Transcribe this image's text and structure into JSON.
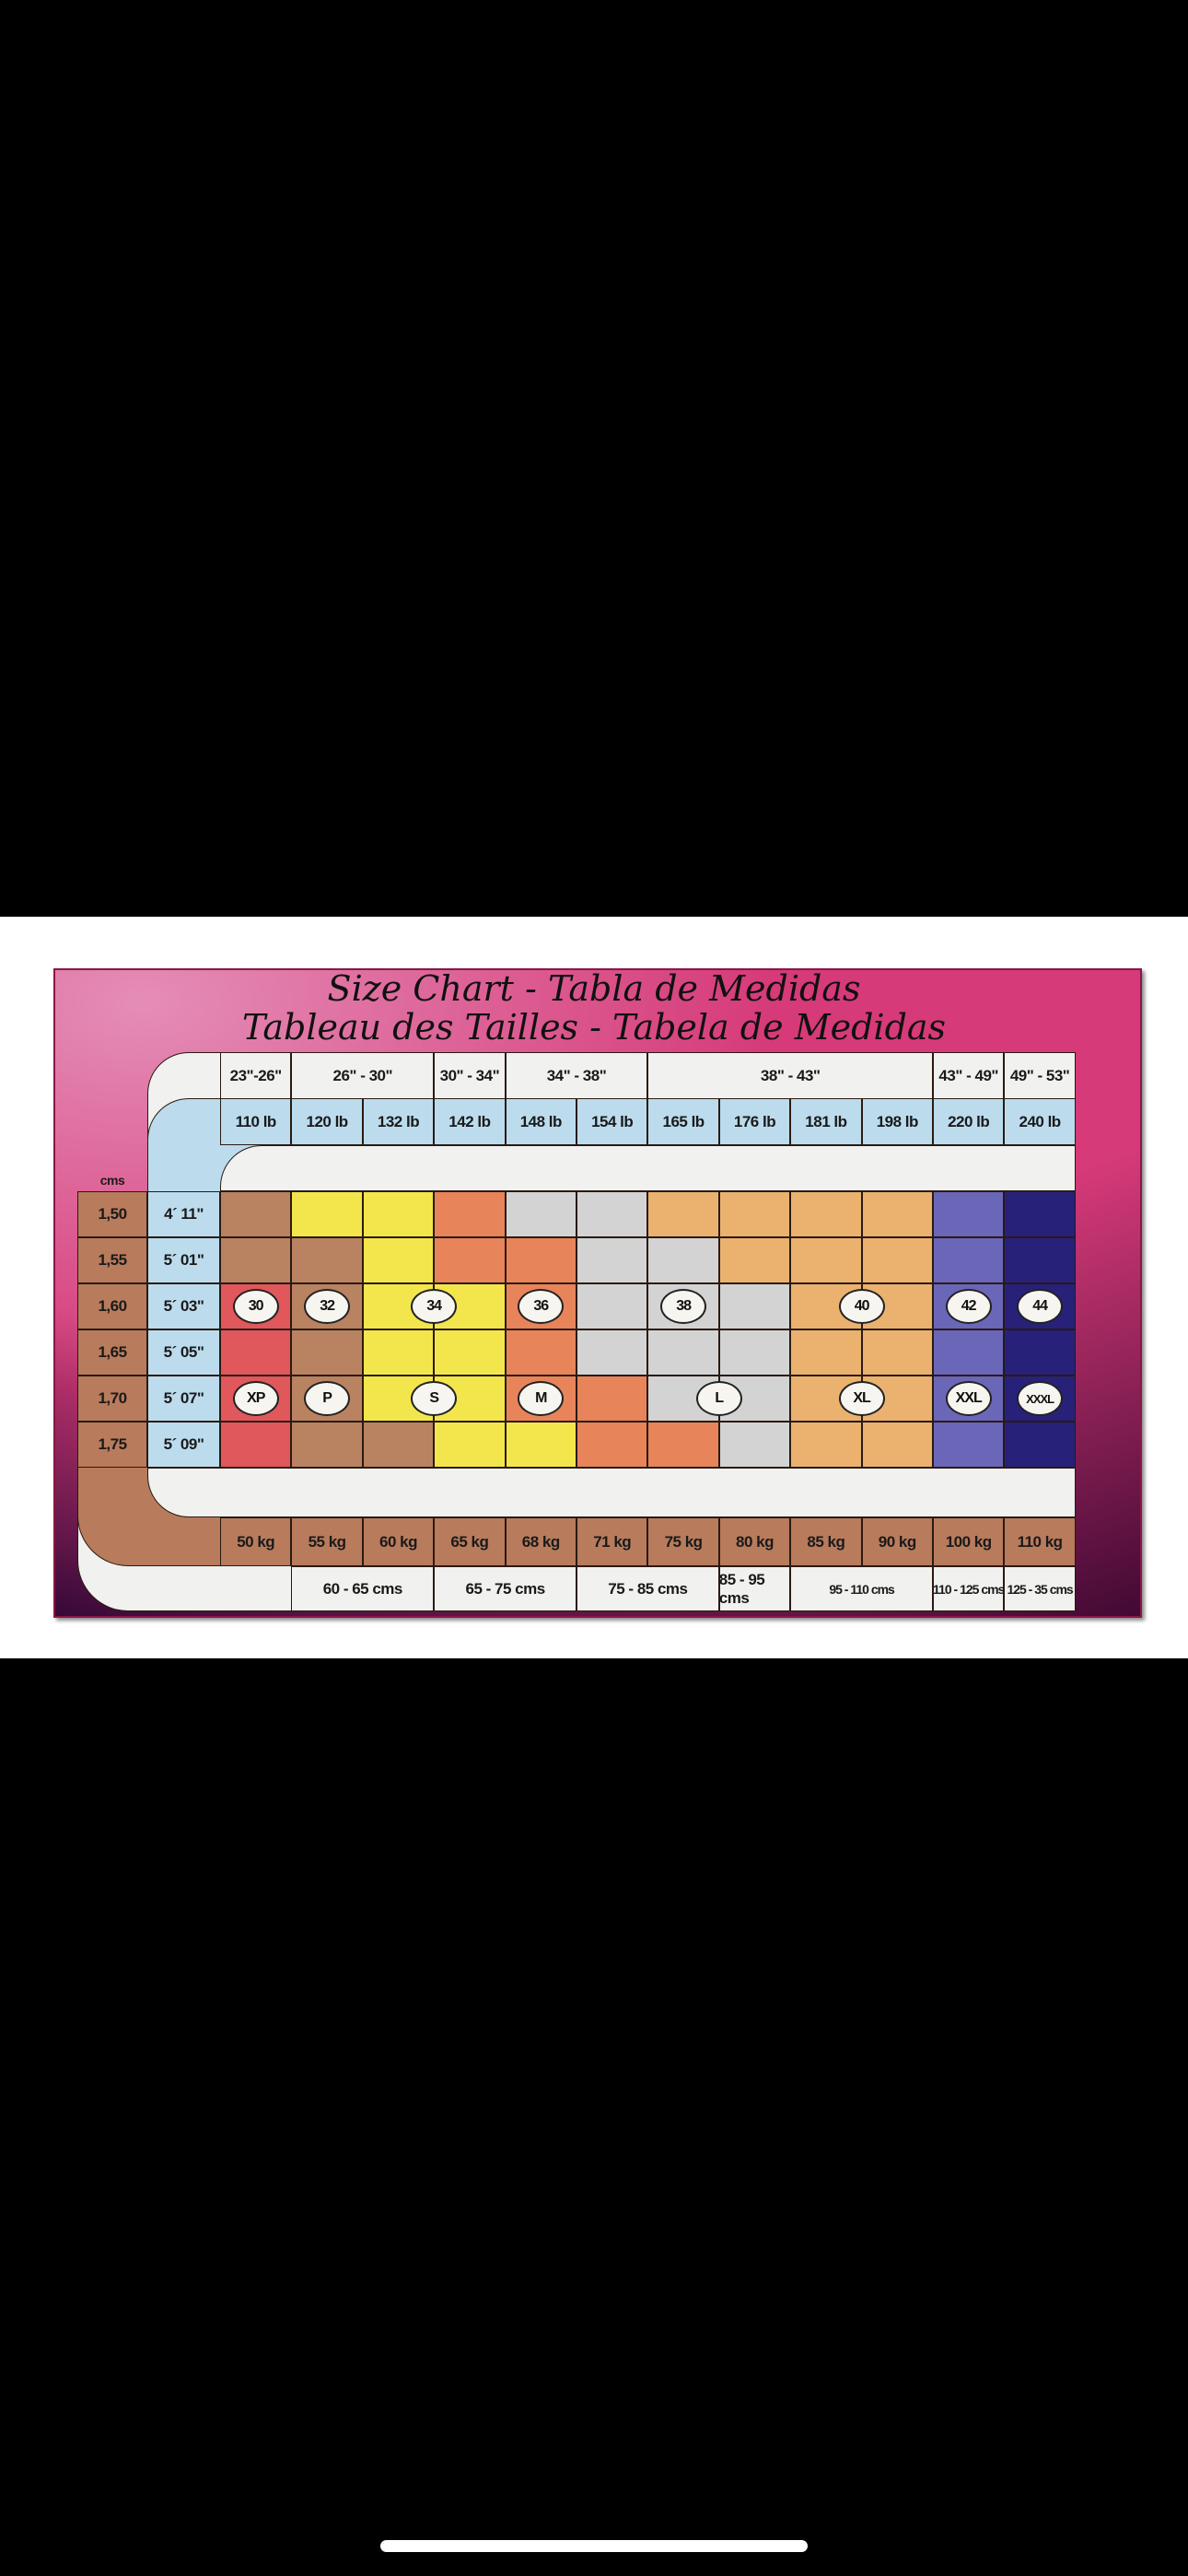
{
  "chart_data": {
    "type": "table",
    "title_line1": "Size Chart - Tabla de Medidas",
    "title_line2": "Tableau des Tailles - Tabela de Medidas",
    "height_unit_label": "cms",
    "waist_header": [
      {
        "label": "23\"-26\"",
        "span": 1
      },
      {
        "label": "26\" - 30\"",
        "span": 2
      },
      {
        "label": "30\" - 34\"",
        "span": 1
      },
      {
        "label": "34\" - 38\"",
        "span": 2
      },
      {
        "label": "38\" - 43\"",
        "span": 4
      },
      {
        "label": "43\" - 49\"",
        "span": 1
      },
      {
        "label": "49\" - 53\"",
        "span": 1
      }
    ],
    "weight_lb": [
      "110 lb",
      "120 lb",
      "132 lb",
      "142 lb",
      "148 lb",
      "154 lb",
      "165 lb",
      "176 lb",
      "181 lb",
      "198 lb",
      "220 lb",
      "240 lb"
    ],
    "weight_kg": [
      "50 kg",
      "55 kg",
      "60 kg",
      "65 kg",
      "68 kg",
      "71 kg",
      "75 kg",
      "80 kg",
      "85 kg",
      "90 kg",
      "100 kg",
      "110 kg"
    ],
    "hip_cms": [
      {
        "label": "",
        "span": 1
      },
      {
        "label": "60 - 65 cms",
        "span": 2
      },
      {
        "label": "65 - 75 cms",
        "span": 2
      },
      {
        "label": "75 - 85 cms",
        "span": 2
      },
      {
        "label": "85 - 95 cms",
        "span": 1
      },
      {
        "label": "95 - 110 cms",
        "span": 2
      },
      {
        "label": "110 - 125 cms",
        "span": 1
      },
      {
        "label": "125 - 35 cms",
        "span": 1
      }
    ],
    "heights": [
      {
        "cm": "1,50",
        "ft": "4´ 11\""
      },
      {
        "cm": "1,55",
        "ft": "5´ 01\""
      },
      {
        "cm": "1,60",
        "ft": "5´ 03\""
      },
      {
        "cm": "1,65",
        "ft": "5´ 05\""
      },
      {
        "cm": "1,70",
        "ft": "5´ 07\""
      },
      {
        "cm": "1,75",
        "ft": "5´ 09\""
      }
    ],
    "colors": {
      "R": "#e0575c",
      "B": "#b98261",
      "Y": "#f3e64c",
      "O": "#e7845a",
      "G": "#d3d3d3",
      "P": "#eab26e",
      "V": "#6a66b8",
      "N": "#27217a"
    },
    "grid": [
      [
        "B",
        "Y",
        "Y",
        "O",
        "G",
        "G",
        "P",
        "P",
        "P",
        "P",
        "V",
        "N"
      ],
      [
        "B",
        "B",
        "Y",
        "O",
        "O",
        "G",
        "G",
        "P",
        "P",
        "P",
        "V",
        "N"
      ],
      [
        "R",
        "B",
        "Y",
        "Y",
        "O",
        "G",
        "G",
        "G",
        "P",
        "P",
        "V",
        "N"
      ],
      [
        "R",
        "B",
        "Y",
        "Y",
        "O",
        "G",
        "G",
        "G",
        "P",
        "P",
        "V",
        "N"
      ],
      [
        "R",
        "B",
        "Y",
        "Y",
        "O",
        "O",
        "G",
        "G",
        "P",
        "P",
        "V",
        "N"
      ],
      [
        "R",
        "B",
        "B",
        "Y",
        "Y",
        "O",
        "O",
        "G",
        "P",
        "P",
        "V",
        "N"
      ]
    ],
    "sizes": [
      {
        "label": "30",
        "row": 2,
        "col": 1
      },
      {
        "label": "32",
        "row": 2,
        "col": 2
      },
      {
        "label": "34",
        "row": 2,
        "col": 3.5
      },
      {
        "label": "36",
        "row": 2,
        "col": 5
      },
      {
        "label": "38",
        "row": 2,
        "col": 7
      },
      {
        "label": "40",
        "row": 2,
        "col": 9.5
      },
      {
        "label": "42",
        "row": 2,
        "col": 11
      },
      {
        "label": "44",
        "row": 2,
        "col": 12
      },
      {
        "label": "XP",
        "row": 4,
        "col": 1
      },
      {
        "label": "P",
        "row": 4,
        "col": 2
      },
      {
        "label": "S",
        "row": 4,
        "col": 3.5
      },
      {
        "label": "M",
        "row": 4,
        "col": 5
      },
      {
        "label": "L",
        "row": 4,
        "col": 7.5
      },
      {
        "label": "XL",
        "row": 4,
        "col": 9.5
      },
      {
        "label": "XXL",
        "row": 4,
        "col": 11
      },
      {
        "label": "XXXL",
        "row": 4,
        "col": 12
      }
    ]
  }
}
